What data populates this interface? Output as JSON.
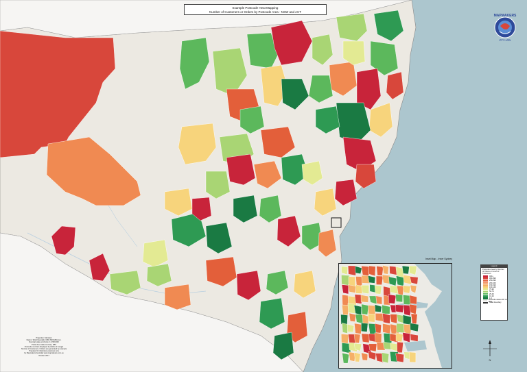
{
  "title": {
    "line1": "Example Postcode Heat Mapping",
    "line2": "Number of Customers or Orders by Postcode Area - NSW and ACT"
  },
  "inset": {
    "label": "Inset Map - Inner Sydney"
  },
  "legend": {
    "title": "Legend",
    "description": "Postcode Areas by Number of Orders or Count of Customers",
    "classes": [
      {
        "label": "400+",
        "color": "#c8243a"
      },
      {
        "label": "300-399",
        "color": "#d8473b"
      },
      {
        "label": "250-299",
        "color": "#e35f3a"
      },
      {
        "label": "200-249",
        "color": "#f08a52"
      },
      {
        "label": "150-199",
        "color": "#f5b068"
      },
      {
        "label": "100-149",
        "color": "#f7d47c"
      },
      {
        "label": "75-99",
        "color": "#e3ea93"
      },
      {
        "label": "50-74",
        "color": "#a9d574"
      },
      {
        "label": "25-49",
        "color": "#5cb85c"
      },
      {
        "label": "10-24",
        "color": "#2e9a53"
      },
      {
        "label": "1-9",
        "color": "#1a7a43"
      }
    ],
    "footer_items": [
      {
        "label": "Postcode areas with no data",
        "color": "#e9e8e4"
      },
      {
        "label": "State boundary",
        "color": "#333333"
      }
    ]
  },
  "credits": [
    "Projection: Mercator",
    "Datum: World Geodetic 1984 (WGS84) Aux.",
    "Nominal scale at A3 size: 1:2,500,000",
    "Postal Area data courtesy: ABS",
    "Postcode numbers displayed by Adobe & Google",
    "Number of Customers / Orders are generated by example",
    "Prepared for illustrative purposes only",
    "by Mapmakers Australia www.mapmakers.com.au",
    "October 2017"
  ],
  "logo": {
    "text_top": "MAPMAKERS",
    "text_bottom": "PTY LTD"
  },
  "compass": {
    "north": "N"
  },
  "colors": {
    "land_nodata": "#ece9e2",
    "ocean": "#acc6ce",
    "outside_state": "#f6f5f3",
    "tones": [
      "#c8243a",
      "#d8473b",
      "#e35f3a",
      "#f08a52",
      "#f5b068",
      "#f7d47c",
      "#e3ea93",
      "#a9d574",
      "#5cb85c",
      "#2e9a53",
      "#1a7a43"
    ]
  }
}
